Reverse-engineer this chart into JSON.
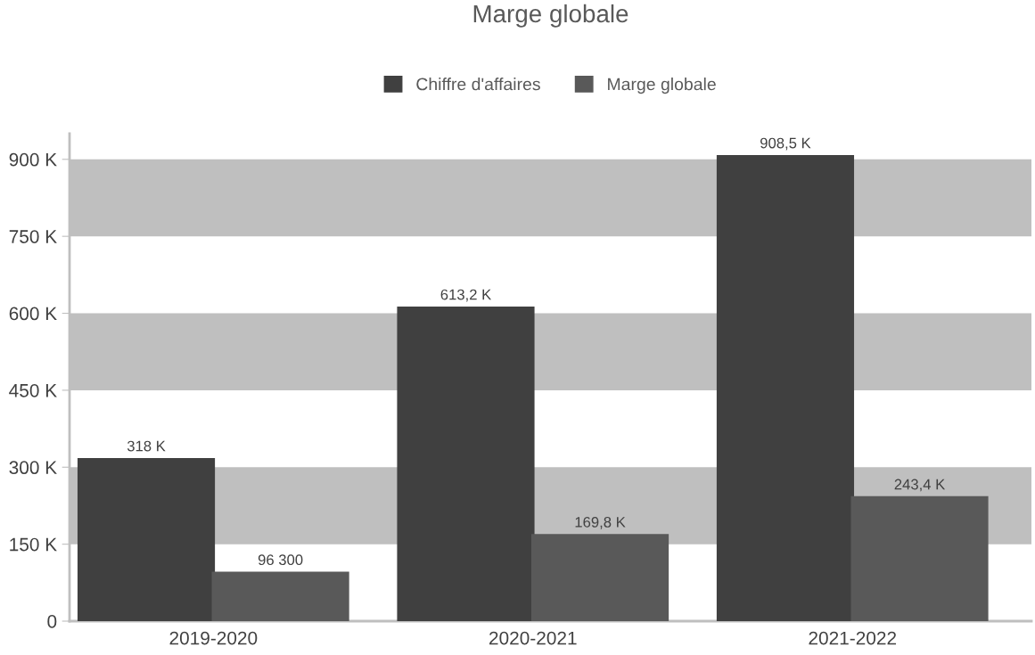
{
  "chart_data": {
    "type": "bar",
    "title": "Marge globale",
    "categories": [
      "2019-2020",
      "2020-2021",
      "2021-2022"
    ],
    "series": [
      {
        "name": "Chiffre d'affaires",
        "color": "#404040",
        "values": [
          318000,
          613200,
          908500
        ],
        "value_labels": [
          "318 K",
          "613,2 K",
          "908,5 K"
        ]
      },
      {
        "name": "Marge globale",
        "color": "#595959",
        "values": [
          96300,
          169800,
          243400
        ],
        "value_labels": [
          "96 300",
          "169,8 K",
          "243,4 K"
        ]
      }
    ],
    "ylim": [
      0,
      950000
    ],
    "yticks": [
      {
        "value": 0,
        "label": "0"
      },
      {
        "value": 150000,
        "label": "150 K"
      },
      {
        "value": 300000,
        "label": "300 K"
      },
      {
        "value": 450000,
        "label": "450 K"
      },
      {
        "value": 600000,
        "label": "600 K"
      },
      {
        "value": 750000,
        "label": "750 K"
      },
      {
        "value": 900000,
        "label": "900 K"
      }
    ],
    "bands": [
      {
        "axis": "y",
        "from": 150000,
        "to": 300000,
        "color": "#bfbfbf"
      },
      {
        "axis": "y",
        "from": 450000,
        "to": 600000,
        "color": "#bfbfbf"
      },
      {
        "axis": "y",
        "from": 750000,
        "to": 900000,
        "color": "#bfbfbf"
      }
    ],
    "legend": "top",
    "grid": false
  }
}
